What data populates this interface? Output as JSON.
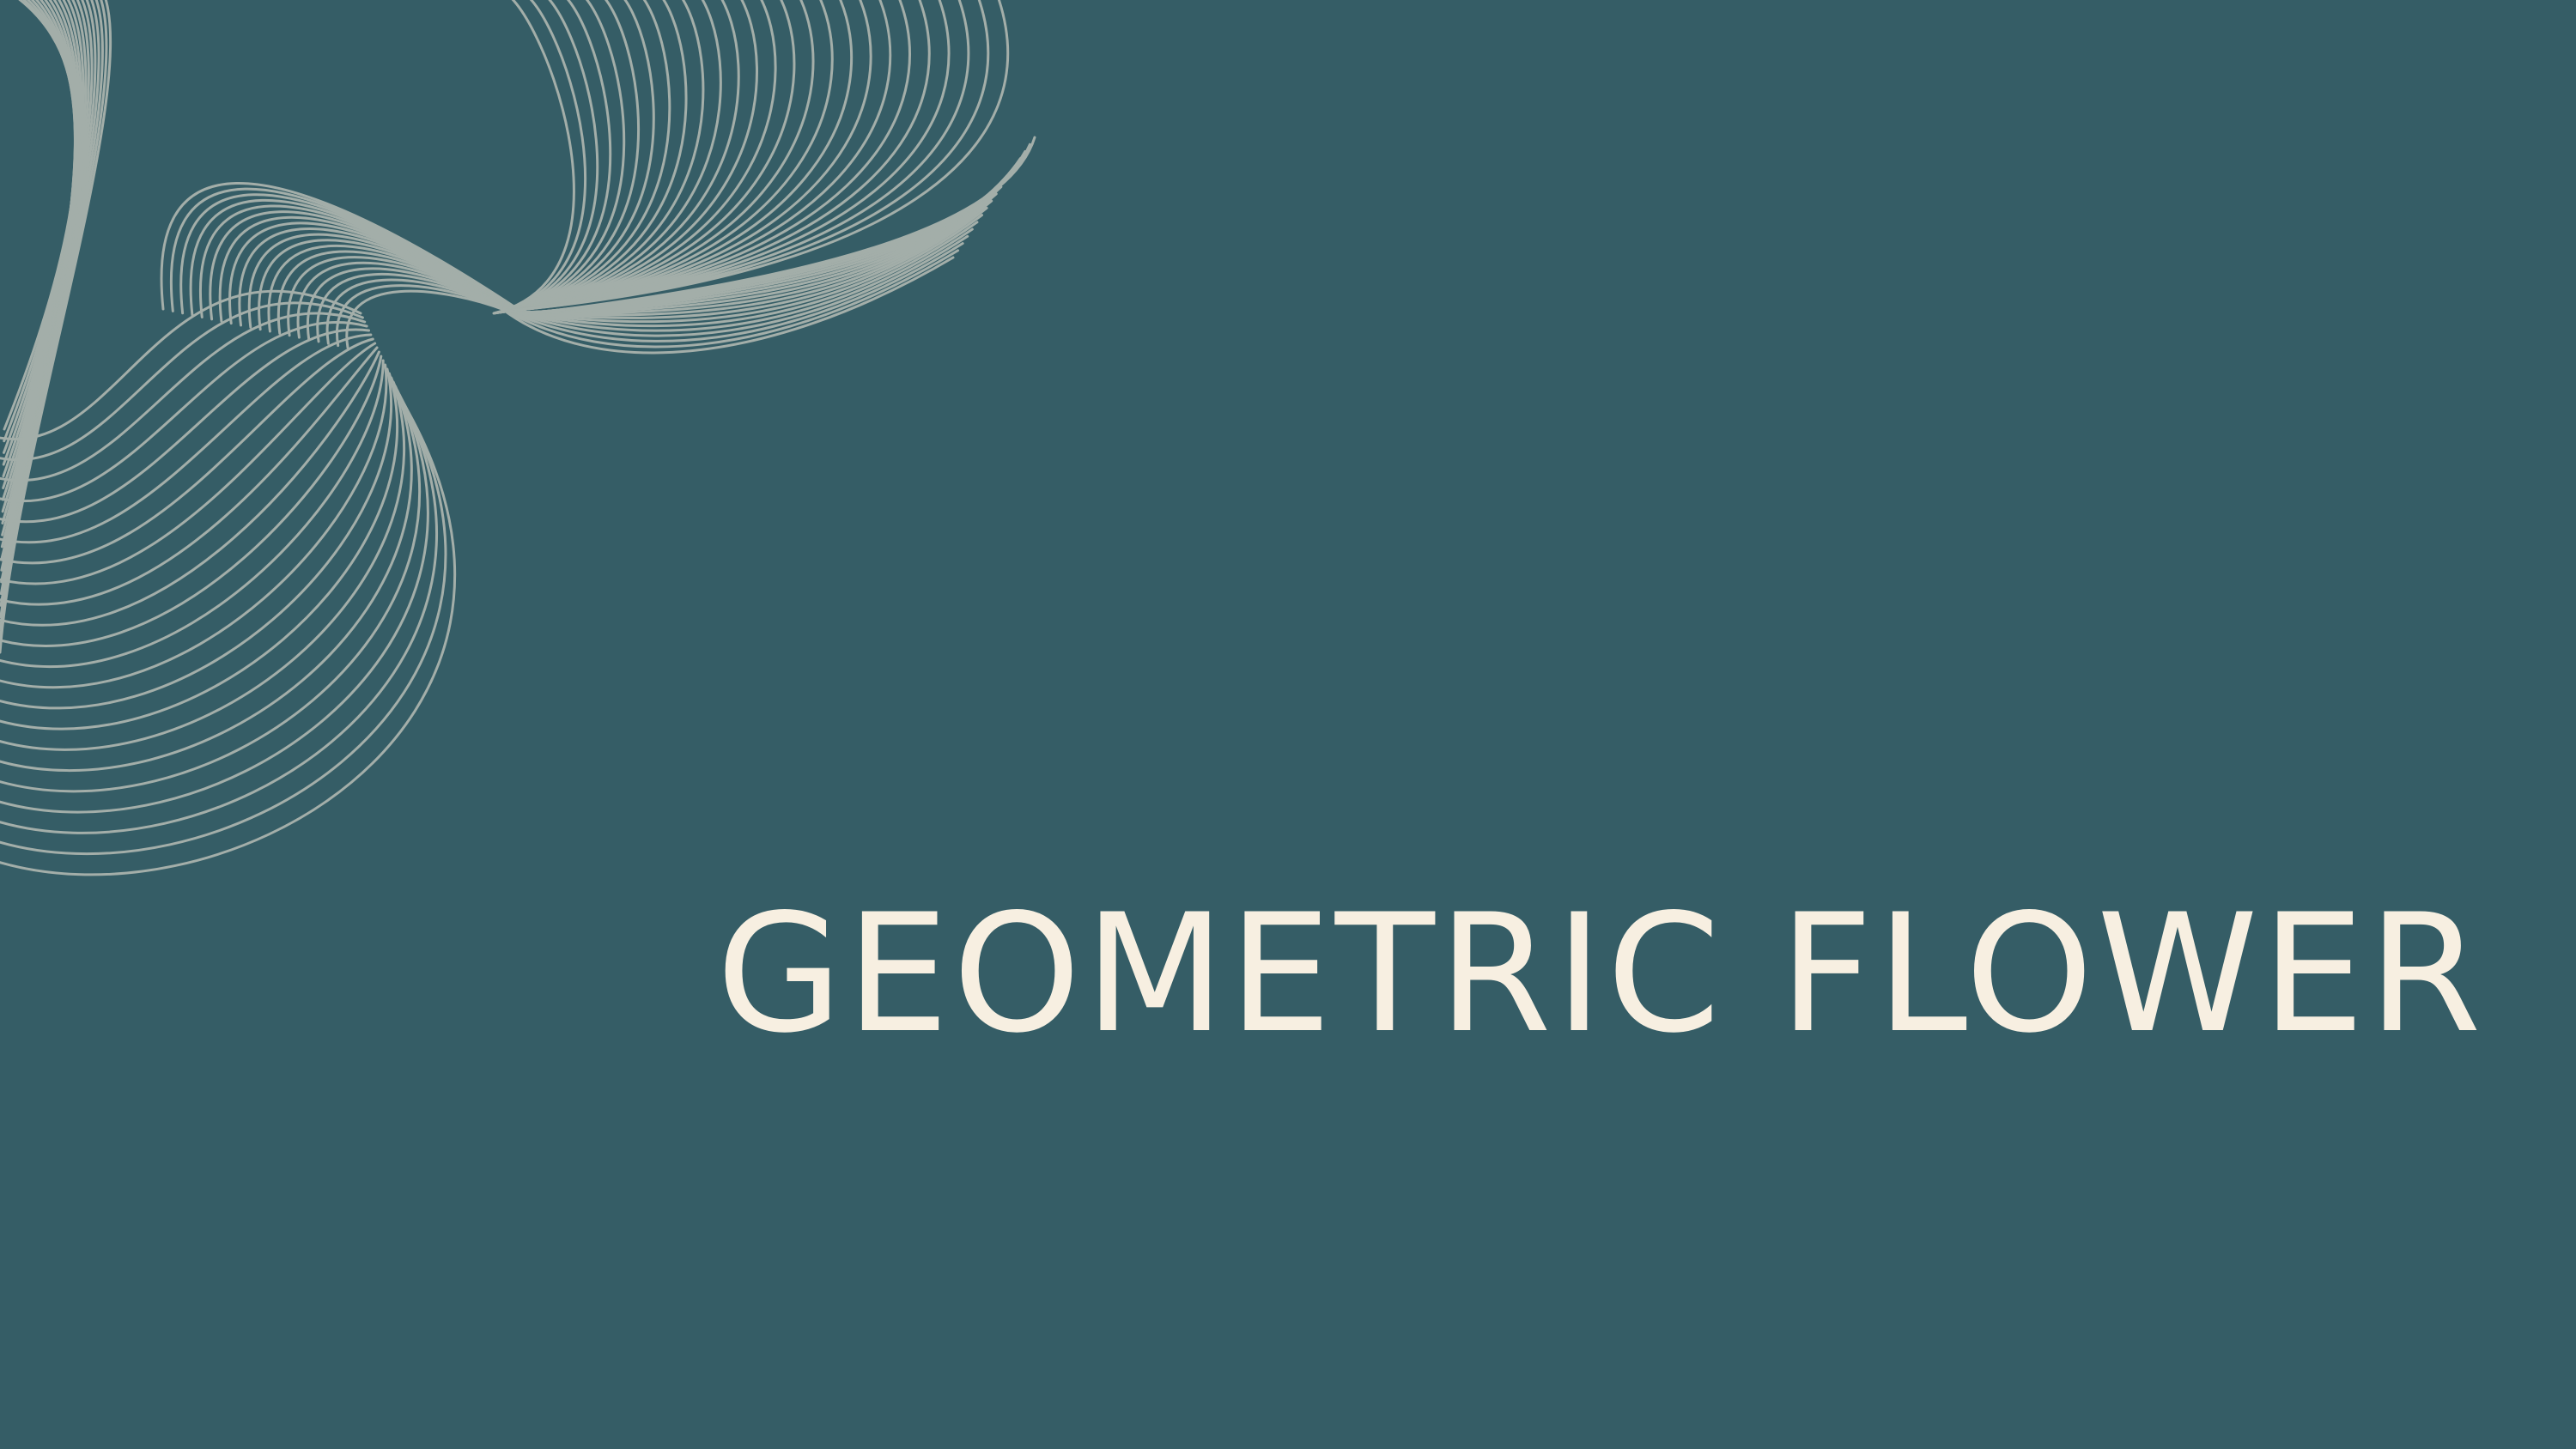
{
  "slide": {
    "title": "GEOMETRIC FLOWER",
    "art_icon": "line-wave-ribbon-icon"
  },
  "colors": {
    "background": "#355d66",
    "title": "#f7efe1",
    "line_art": "#a3aea9"
  }
}
